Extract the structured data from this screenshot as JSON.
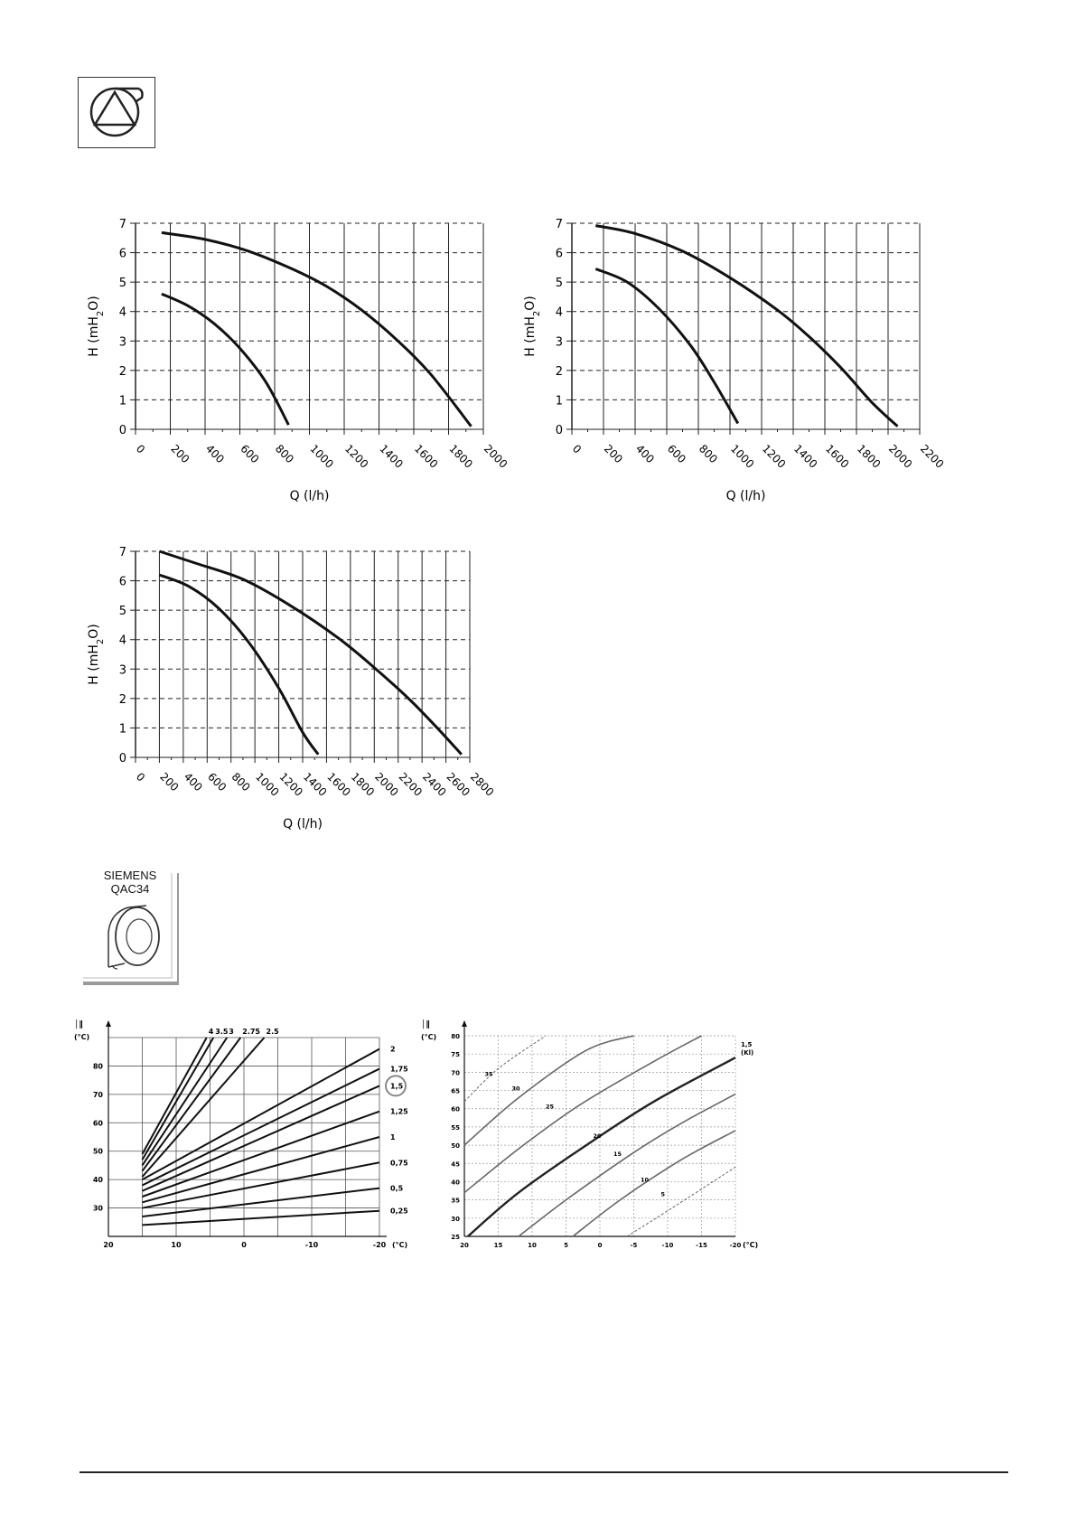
{
  "header": {
    "icon": "pump-icon"
  },
  "sensor": {
    "brand": "SIEMENS",
    "model": "QAC34",
    "icon": "outdoor-sensor-icon"
  },
  "chart_data": [
    {
      "type": "line",
      "xlabel": "Q (l/h)",
      "ylabel_parts": [
        "H (mH",
        "2",
        "O)"
      ],
      "xlim": [
        0,
        2000
      ],
      "ylim": [
        0,
        7
      ],
      "xticks": [
        0,
        200,
        400,
        600,
        800,
        1000,
        1200,
        1400,
        1600,
        1800,
        2000
      ],
      "yticks": [
        0,
        1,
        2,
        3,
        4,
        5,
        6,
        7
      ],
      "grid": true,
      "series": [
        {
          "points": [
            [
              150,
              6.68
            ],
            [
              400,
              6.45
            ],
            [
              650,
              6.05
            ],
            [
              900,
              5.45
            ],
            [
              1100,
              4.85
            ],
            [
              1300,
              4.05
            ],
            [
              1500,
              3.05
            ],
            [
              1700,
              1.85
            ],
            [
              1930,
              0.1
            ]
          ]
        },
        {
          "points": [
            [
              150,
              4.6
            ],
            [
              300,
              4.2
            ],
            [
              450,
              3.6
            ],
            [
              600,
              2.75
            ],
            [
              750,
              1.6
            ],
            [
              880,
              0.15
            ]
          ]
        }
      ]
    },
    {
      "type": "line",
      "xlabel": "Q (l/h)",
      "ylabel_parts": [
        "H (mH",
        "2",
        "O)"
      ],
      "xlim": [
        0,
        2200
      ],
      "ylim": [
        0,
        7
      ],
      "xticks": [
        0,
        200,
        400,
        600,
        800,
        1000,
        1200,
        1400,
        1600,
        1800,
        2000,
        2200
      ],
      "yticks": [
        0,
        1,
        2,
        3,
        4,
        5,
        6,
        7
      ],
      "grid": true,
      "series": [
        {
          "points": [
            [
              150,
              6.92
            ],
            [
              400,
              6.65
            ],
            [
              700,
              6.05
            ],
            [
              1000,
              5.15
            ],
            [
              1300,
              4.05
            ],
            [
              1500,
              3.15
            ],
            [
              1700,
              2.1
            ],
            [
              1900,
              0.9
            ],
            [
              2060,
              0.1
            ]
          ]
        },
        {
          "points": [
            [
              150,
              5.45
            ],
            [
              350,
              5.0
            ],
            [
              550,
              4.1
            ],
            [
              750,
              2.85
            ],
            [
              900,
              1.6
            ],
            [
              1050,
              0.2
            ]
          ]
        }
      ]
    },
    {
      "type": "line",
      "xlabel": "Q (l/h)",
      "ylabel_parts": [
        "H (mH",
        "2",
        "O)"
      ],
      "xlim": [
        0,
        2800
      ],
      "ylim": [
        0,
        7
      ],
      "xticks": [
        0,
        200,
        400,
        600,
        800,
        1000,
        1200,
        1400,
        1600,
        1800,
        2000,
        2200,
        2400,
        2600,
        2800
      ],
      "yticks": [
        0,
        1,
        2,
        3,
        4,
        5,
        6,
        7
      ],
      "grid": true,
      "series": [
        {
          "points": [
            [
              200,
              7.0
            ],
            [
              500,
              6.6
            ],
            [
              900,
              6.05
            ],
            [
              1300,
              5.15
            ],
            [
              1700,
              4.05
            ],
            [
              2000,
              3.05
            ],
            [
              2300,
              1.95
            ],
            [
              2550,
              0.9
            ],
            [
              2730,
              0.1
            ]
          ]
        },
        {
          "points": [
            [
              200,
              6.2
            ],
            [
              450,
              5.8
            ],
            [
              700,
              5.05
            ],
            [
              950,
              3.9
            ],
            [
              1200,
              2.35
            ],
            [
              1400,
              0.85
            ],
            [
              1530,
              0.1
            ]
          ]
        }
      ]
    },
    {
      "type": "line",
      "x_unit_label": "(°C)",
      "y_unit_label": "(°C)",
      "xlim": [
        20,
        -20
      ],
      "ylim": [
        20,
        90
      ],
      "xticks": [
        20,
        10,
        0,
        -10,
        -20
      ],
      "yticks": [
        30,
        40,
        50,
        60,
        70,
        80
      ],
      "grid": true,
      "highlighted": "1,5",
      "series": [
        {
          "name": "4",
          "points": [
            [
              15,
              49
            ],
            [
              5.5,
              90
            ]
          ]
        },
        {
          "name": "3.5",
          "points": [
            [
              15,
              47
            ],
            [
              4.5,
              90
            ]
          ]
        },
        {
          "name": "3",
          "points": [
            [
              15,
              45
            ],
            [
              2.5,
              90
            ]
          ]
        },
        {
          "name": "2.75",
          "points": [
            [
              15,
              43
            ],
            [
              0.5,
              90
            ]
          ]
        },
        {
          "name": "2.5",
          "points": [
            [
              15,
              41
            ],
            [
              -3,
              90
            ]
          ]
        },
        {
          "name": "2",
          "points": [
            [
              15,
              40
            ],
            [
              -20,
              86
            ]
          ]
        },
        {
          "name": "1,75",
          "points": [
            [
              15,
              38
            ],
            [
              -20,
              79
            ]
          ]
        },
        {
          "name": "1,5",
          "points": [
            [
              15,
              36
            ],
            [
              -20,
              73
            ]
          ]
        },
        {
          "name": "1,25",
          "points": [
            [
              15,
              34
            ],
            [
              -20,
              64
            ]
          ]
        },
        {
          "name": "1",
          "points": [
            [
              15,
              32
            ],
            [
              -20,
              55
            ]
          ]
        },
        {
          "name": "0,75",
          "points": [
            [
              15,
              30
            ],
            [
              -20,
              46
            ]
          ]
        },
        {
          "name": "0,5",
          "points": [
            [
              15,
              27
            ],
            [
              -20,
              37
            ]
          ]
        },
        {
          "name": "0,25",
          "points": [
            [
              15,
              24
            ],
            [
              -20,
              29
            ]
          ]
        }
      ]
    },
    {
      "type": "line",
      "x_unit_label": "(°C)",
      "y_unit_label": "(°C)",
      "xlim": [
        20,
        -20
      ],
      "ylim": [
        25,
        80
      ],
      "xticks": [
        20,
        15,
        10,
        5,
        0,
        -5,
        -10,
        -15,
        -20
      ],
      "yticks": [
        25,
        30,
        35,
        40,
        45,
        50,
        55,
        60,
        65,
        70,
        75,
        80
      ],
      "grid": true,
      "slope_label": [
        "1,5",
        "(Kl)"
      ],
      "series": [
        {
          "name": "35",
          "points": [
            [
              20,
              62
            ],
            [
              15,
              71
            ],
            [
              8,
              80
            ]
          ]
        },
        {
          "name": "30",
          "points": [
            [
              20,
              50
            ],
            [
              12,
              63
            ],
            [
              2,
              76
            ],
            [
              -5,
              80
            ]
          ]
        },
        {
          "name": "25",
          "points": [
            [
              20,
              37
            ],
            [
              12,
              49
            ],
            [
              3,
              61
            ],
            [
              -8,
              73
            ],
            [
              -15,
              80
            ]
          ]
        },
        {
          "name": "20",
          "points": [
            [
              19.5,
              25
            ],
            [
              12,
              37
            ],
            [
              2,
              50
            ],
            [
              -8,
              62
            ],
            [
              -20,
              74
            ]
          ]
        },
        {
          "name": "15",
          "points": [
            [
              12,
              25
            ],
            [
              5,
              35
            ],
            [
              -5,
              48
            ],
            [
              -12,
              56
            ],
            [
              -20,
              64
            ]
          ]
        },
        {
          "name": "10",
          "points": [
            [
              4,
              25
            ],
            [
              -3,
              35
            ],
            [
              -12,
              46
            ],
            [
              -20,
              54
            ]
          ]
        },
        {
          "name": "5",
          "points": [
            [
              -4,
              25
            ],
            [
              -10,
              32
            ],
            [
              -20,
              44
            ]
          ]
        }
      ]
    }
  ]
}
